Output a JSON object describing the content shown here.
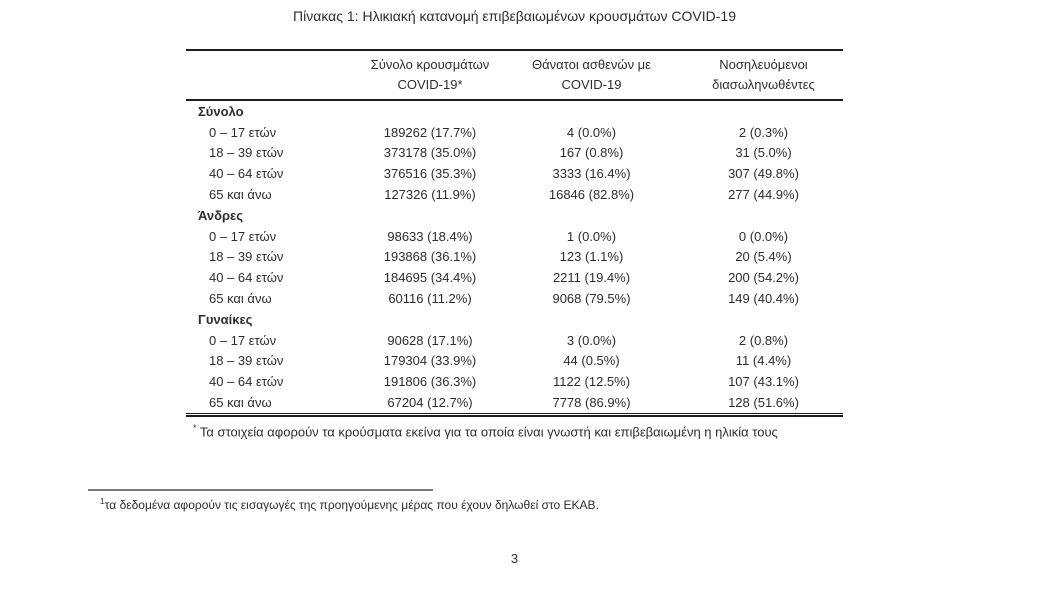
{
  "page": {
    "title": "Πίνακας 1: Ηλικιακή κατανομή επιβεβαιωμένων κρουσμάτων COVID-19",
    "page_number": "3",
    "footnote_star_marker": "*",
    "footnote_star_text": "Τα στοιχεία αφορούν τα κρούσματα εκείνα για τα οποία είναι γνωστή και επιβεβαιωμένη η ηλικία τους",
    "footnote_one_marker": "1",
    "footnote_one_text": "τα δεδομένα αφορούν τις εισαγωγές της προηγούμενης μέρας που έχουν δηλωθεί στο ΕΚΑΒ."
  },
  "table": {
    "headers": [
      {
        "line1": "Σύνολο κρουσμάτων",
        "line2": "COVID-19*"
      },
      {
        "line1": "Θάνατοι ασθενών με",
        "line2": "COVID-19"
      },
      {
        "line1": "Νοσηλευόμενοι",
        "line2": "διασωληνωθέντες"
      }
    ],
    "sections": [
      {
        "label": "Σύνολο",
        "rows": [
          {
            "label": "0 – 17 ετών",
            "cases": "189262 (17.7%)",
            "deaths": "4 (0.0%)",
            "intubated": "2 (0.3%)"
          },
          {
            "label": "18 – 39 ετών",
            "cases": "373178 (35.0%)",
            "deaths": "167 (0.8%)",
            "intubated": "31 (5.0%)"
          },
          {
            "label": "40 – 64 ετών",
            "cases": "376516 (35.3%)",
            "deaths": "3333 (16.4%)",
            "intubated": "307 (49.8%)"
          },
          {
            "label": "65 και άνω",
            "cases": "127326 (11.9%)",
            "deaths": "16846 (82.8%)",
            "intubated": "277 (44.9%)"
          }
        ]
      },
      {
        "label": "Άνδρες",
        "rows": [
          {
            "label": "0 – 17 ετών",
            "cases": "98633 (18.4%)",
            "deaths": "1 (0.0%)",
            "intubated": "0 (0.0%)"
          },
          {
            "label": "18 – 39 ετών",
            "cases": "193868 (36.1%)",
            "deaths": "123 (1.1%)",
            "intubated": "20 (5.4%)"
          },
          {
            "label": "40 – 64 ετών",
            "cases": "184695 (34.4%)",
            "deaths": "2211 (19.4%)",
            "intubated": "200 (54.2%)"
          },
          {
            "label": "65 και άνω",
            "cases": "60116 (11.2%)",
            "deaths": "9068 (79.5%)",
            "intubated": "149 (40.4%)"
          }
        ]
      },
      {
        "label": "Γυναίκες",
        "rows": [
          {
            "label": "0 – 17 ετών",
            "cases": "90628 (17.1%)",
            "deaths": "3 (0.0%)",
            "intubated": "2 (0.8%)"
          },
          {
            "label": "18 – 39 ετών",
            "cases": "179304 (33.9%)",
            "deaths": "44 (0.5%)",
            "intubated": "11 (4.4%)"
          },
          {
            "label": "40 – 64 ετών",
            "cases": "191806 (36.3%)",
            "deaths": "1122 (12.5%)",
            "intubated": "107 (43.1%)"
          },
          {
            "label": "65 και άνω",
            "cases": "67204 (12.7%)",
            "deaths": "7778 (86.9%)",
            "intubated": "128 (51.6%)"
          }
        ]
      }
    ]
  },
  "colors": {
    "text": "#2d2d30",
    "rule": "#1d1d1f",
    "footnote_separator": "#7b7b7b",
    "background": "#ffffff"
  }
}
